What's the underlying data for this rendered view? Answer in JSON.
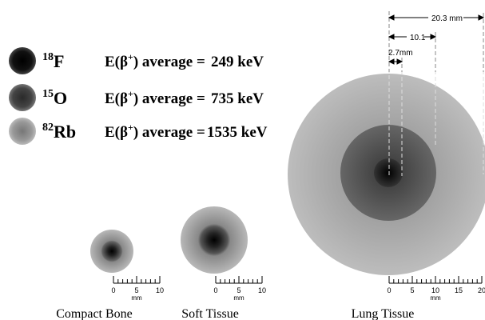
{
  "legend": [
    {
      "mass": "18",
      "symbol": "F",
      "energy_label": "E(β",
      "energy_sup": "+",
      "energy_mid": ") average =",
      "energy_value": "249 keV"
    },
    {
      "mass": "15",
      "symbol": "O",
      "energy_label": "E(β",
      "energy_sup": "+",
      "energy_mid": ") average =",
      "energy_value": "735 keV"
    },
    {
      "mass": "82",
      "symbol": "Rb",
      "energy_label": "E(β",
      "energy_sup": "+",
      "energy_mid": ") average =",
      "energy_value": "1535 keV"
    }
  ],
  "tissues": [
    {
      "label": "Compact Bone",
      "scale_ticks": [
        "0",
        "5",
        "10"
      ],
      "scale_unit": "mm"
    },
    {
      "label": "Soft Tissue",
      "scale_ticks": [
        "0",
        "5",
        "10"
      ],
      "scale_unit": "mm"
    },
    {
      "label": "Lung Tissue",
      "scale_ticks": [
        "0",
        "5",
        "10",
        "15",
        "20"
      ],
      "scale_unit": "mm"
    }
  ],
  "dimensions": [
    {
      "label": "20.3 mm"
    },
    {
      "label": "10.1"
    },
    {
      "label": "2.7mm"
    }
  ]
}
